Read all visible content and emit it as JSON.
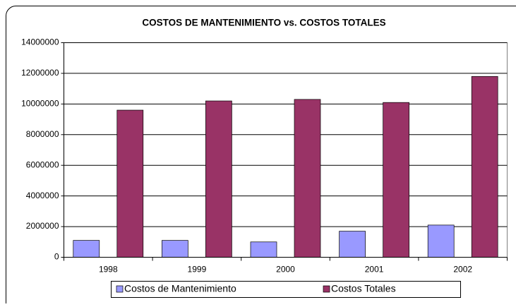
{
  "chart_data": {
    "type": "bar",
    "title": "COSTOS DE MANTENIMIENTO vs. COSTOS TOTALES",
    "categories": [
      "1998",
      "1999",
      "2000",
      "2001",
      "2002"
    ],
    "series": [
      {
        "name": "Costos de Mantenimiento",
        "color": "#9999ff",
        "values": [
          1100000,
          1100000,
          1000000,
          1700000,
          2100000
        ]
      },
      {
        "name": "Costos Totales",
        "color": "#993366",
        "values": [
          9600000,
          10200000,
          10300000,
          10100000,
          11800000
        ]
      }
    ],
    "ylim": [
      0,
      14000000
    ],
    "yticks": [
      0,
      2000000,
      4000000,
      6000000,
      8000000,
      10000000,
      12000000,
      14000000
    ],
    "grid": true,
    "legend": "bottom"
  }
}
